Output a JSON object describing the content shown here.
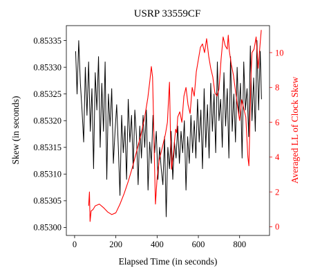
{
  "chart_data": {
    "type": "line",
    "title": "USRP 33559CF",
    "xlabel": "Elapsed Time (in seconds)",
    "ylabel_left": "Skew (in seconds)",
    "ylabel_right": "Averaged LL of Clock Skew",
    "xlim": [
      -40,
      945
    ],
    "ylim_left": [
      0.852985,
      0.853378
    ],
    "ylim_right": [
      -0.5,
      11.55
    ],
    "x_ticks": [
      0,
      200,
      400,
      600,
      800
    ],
    "y_left_ticks": [
      0.853,
      0.85305,
      0.8531,
      0.85315,
      0.8532,
      0.85325,
      0.8533,
      0.85335
    ],
    "y_left_tick_labels": [
      "0.85300",
      "0.85305",
      "0.85310",
      "0.85315",
      "0.85320",
      "0.85325",
      "0.85330",
      "0.85335"
    ],
    "y_right_ticks": [
      0,
      2,
      4,
      6,
      8,
      10
    ],
    "y_right_tick_labels": [
      "0",
      "2",
      "4",
      "6",
      "8",
      "10"
    ],
    "grid": false,
    "colors": {
      "skew": "#000000",
      "ll": "#ff0000",
      "axis_right": "#ff0000",
      "axis_left": "#000000"
    },
    "series": [
      {
        "axis": "left",
        "color": "#000000",
        "x": [
          5,
          12,
          20,
          28,
          36,
          44,
          52,
          60,
          68,
          76,
          84,
          92,
          100,
          108,
          116,
          124,
          132,
          140,
          148,
          156,
          164,
          172,
          180,
          188,
          196,
          204,
          212,
          220,
          228,
          236,
          244,
          252,
          260,
          268,
          276,
          284,
          292,
          300,
          308,
          316,
          324,
          332,
          340,
          348,
          356,
          364,
          372,
          380,
          388,
          396,
          404,
          412,
          420,
          428,
          436,
          444,
          452,
          460,
          468,
          476,
          484,
          492,
          500,
          508,
          516,
          524,
          532,
          540,
          548,
          556,
          564,
          572,
          580,
          588,
          596,
          604,
          612,
          620,
          628,
          636,
          644,
          652,
          660,
          668,
          676,
          684,
          692,
          700,
          708,
          716,
          724,
          732,
          740,
          748,
          756,
          764,
          772,
          780,
          788,
          796,
          804,
          812,
          820,
          828,
          836,
          844,
          852,
          860,
          868,
          876,
          884,
          892,
          900,
          906
        ],
        "y": [
          0.85333,
          0.85325,
          0.85335,
          0.85327,
          0.85322,
          0.85316,
          0.8533,
          0.85321,
          0.85331,
          0.85318,
          0.85326,
          0.85311,
          0.85329,
          0.85322,
          0.85332,
          0.85315,
          0.85327,
          0.85318,
          0.85331,
          0.85309,
          0.85325,
          0.85319,
          0.85326,
          0.85312,
          0.85318,
          0.85323,
          0.85315,
          0.85306,
          0.85321,
          0.85314,
          0.85319,
          0.85309,
          0.85324,
          0.85316,
          0.85321,
          0.85311,
          0.85322,
          0.85317,
          0.85308,
          0.85319,
          0.85313,
          0.85321,
          0.85315,
          0.85322,
          0.85307,
          0.85316,
          0.85312,
          0.85321,
          0.85314,
          0.85318,
          0.85309,
          0.85315,
          0.85311,
          0.85308,
          0.85317,
          0.85302,
          0.85315,
          0.85311,
          0.85318,
          0.85309,
          0.85316,
          0.85313,
          0.85319,
          0.85312,
          0.85318,
          0.85314,
          0.8532,
          0.85307,
          0.85317,
          0.85312,
          0.85321,
          0.85314,
          0.8532,
          0.85313,
          0.85324,
          0.85316,
          0.85322,
          0.85311,
          0.85326,
          0.85315,
          0.85323,
          0.85313,
          0.85327,
          0.85318,
          0.85325,
          0.85314,
          0.85331,
          0.8532,
          0.85324,
          0.85315,
          0.85329,
          0.85319,
          0.85326,
          0.85313,
          0.85332,
          0.85318,
          0.85325,
          0.85316,
          0.8533,
          0.85321,
          0.85327,
          0.85313,
          0.85331,
          0.85322,
          0.85326,
          0.85317,
          0.85334,
          0.8532,
          0.85328,
          0.85318,
          0.85335,
          0.85322,
          0.85333,
          0.85324
        ]
      },
      {
        "axis": "right",
        "color": "#ff0000",
        "x": [
          68,
          72,
          75,
          80,
          90,
          100,
          120,
          140,
          160,
          180,
          200,
          220,
          240,
          260,
          280,
          300,
          320,
          340,
          355,
          365,
          372,
          378,
          383,
          387,
          392,
          400,
          410,
          420,
          430,
          440,
          450,
          455,
          460,
          465,
          470,
          475,
          480,
          485,
          490,
          495,
          500,
          510,
          520,
          530,
          540,
          550,
          560,
          570,
          580,
          590,
          600,
          610,
          620,
          630,
          640,
          650,
          660,
          670,
          680,
          690,
          700,
          710,
          720,
          730,
          740,
          745,
          750,
          760,
          770,
          780,
          790,
          800,
          810,
          820,
          830,
          840,
          845,
          850,
          855,
          860,
          870,
          880,
          890,
          900,
          905
        ],
        "y": [
          1.2,
          2.0,
          0.3,
          0.9,
          1.0,
          1.2,
          1.3,
          1.1,
          0.85,
          0.7,
          0.8,
          1.3,
          1.9,
          2.6,
          3.4,
          4.3,
          5.2,
          6.3,
          7.4,
          8.4,
          9.2,
          8.6,
          6.0,
          3.8,
          1.3,
          2.8,
          3.8,
          4.3,
          4.8,
          5.3,
          6.0,
          7.2,
          8.3,
          5.2,
          3.3,
          3.8,
          4.3,
          5.0,
          5.6,
          5.4,
          6.3,
          6.6,
          6.0,
          7.5,
          8.0,
          7.0,
          6.5,
          8.0,
          7.5,
          8.9,
          9.6,
          10.3,
          10.5,
          10.0,
          10.8,
          9.8,
          9.1,
          8.6,
          7.7,
          7.5,
          7.9,
          9.6,
          10.9,
          10.4,
          10.2,
          11.0,
          10.1,
          9.3,
          8.7,
          7.8,
          6.9,
          6.1,
          7.3,
          6.8,
          6.3,
          4.0,
          3.5,
          6.0,
          8.6,
          10.0,
          10.2,
          10.9,
          9.1,
          10.6,
          11.3
        ]
      }
    ]
  }
}
